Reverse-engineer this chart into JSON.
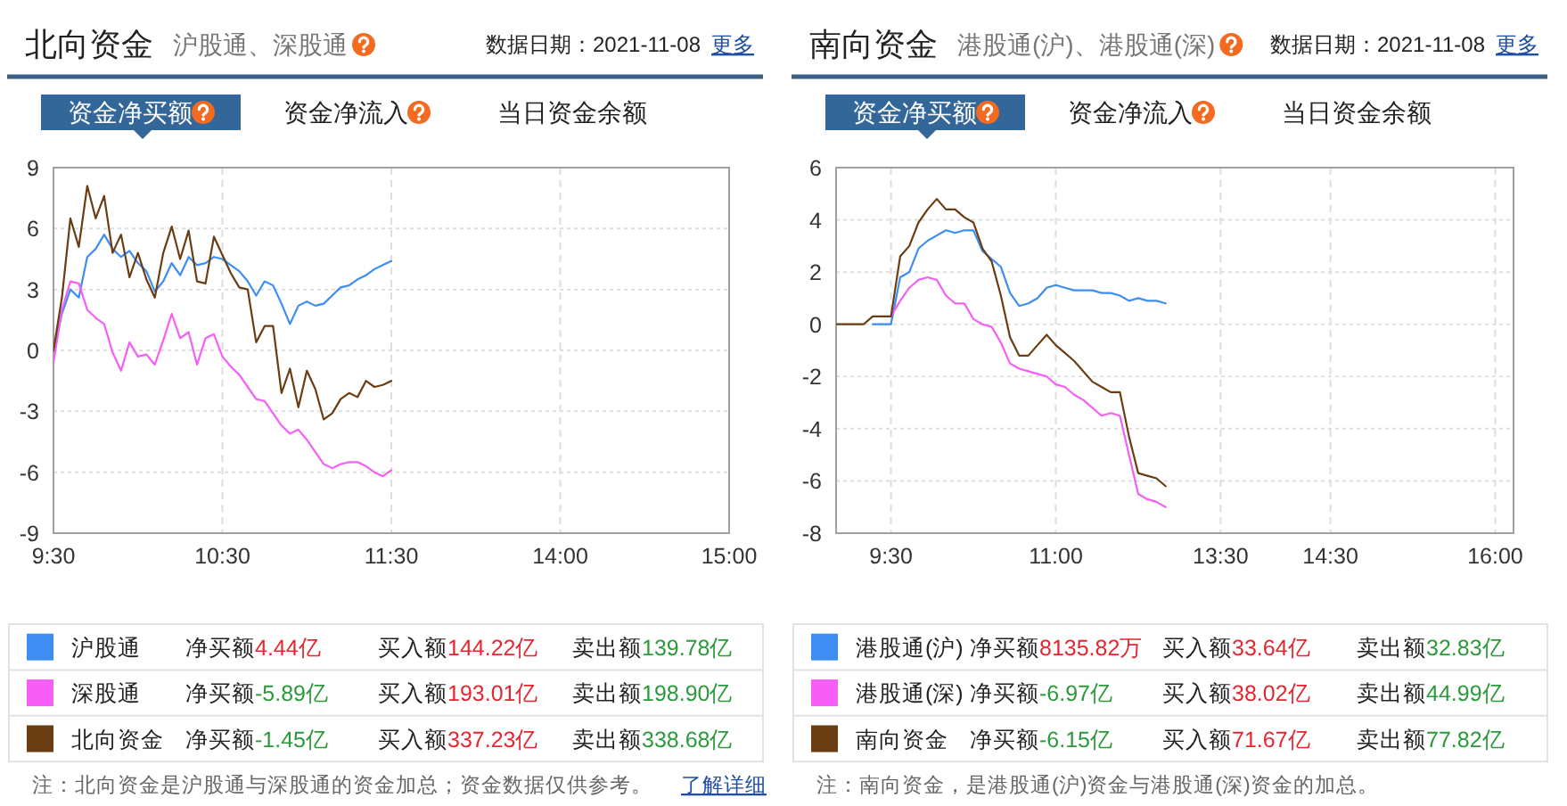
{
  "chart_data": [
    {
      "type": "line",
      "title": "北向资金",
      "subtitle": "沪股通、深股通",
      "annotations": [
        "数据日期：2021-11-08",
        "更多",
        "资金净买额",
        "资金净流入",
        "当日资金余额",
        "净买额",
        "4.44亿",
        "买入额",
        "144.22亿",
        "卖出额",
        "139.78亿",
        "净买额",
        "-5.89亿",
        "买入额",
        "193.01亿",
        "卖出额",
        "198.90亿",
        "净买额",
        "-1.45亿",
        "买入额",
        "337.23亿",
        "卖出额",
        "338.68亿",
        "注：北向资金是沪股通与深股通的资金加总；资金数据仅供参考。",
        "了解详细"
      ],
      "categories": [
        "9:30",
        null,
        null,
        null,
        null,
        null,
        null,
        null,
        null,
        null,
        null,
        null,
        null,
        null,
        null,
        null,
        null,
        null,
        null,
        null,
        "10:30",
        null,
        null,
        null,
        null,
        null,
        null,
        null,
        null,
        null,
        null,
        null,
        null,
        null,
        null,
        null,
        null,
        null,
        null,
        null,
        "11:30",
        null,
        null,
        null,
        null,
        null,
        null,
        null,
        null,
        null,
        null,
        null,
        null,
        null,
        null,
        null,
        null,
        null,
        null,
        null,
        "14:00",
        null,
        null,
        null,
        null,
        null,
        null,
        null,
        null,
        null,
        null,
        null,
        null,
        null,
        null,
        null,
        null,
        null,
        null,
        null,
        "15:00"
      ],
      "ylim": [
        -9,
        9
      ],
      "yticks": [
        -9,
        -6,
        -3,
        0,
        3,
        6,
        9
      ],
      "grid": true,
      "legend": "bottom",
      "series": [
        {
          "name": "沪股通",
          "color": "#3d8ef0",
          "values": [
            0.0,
            1.8,
            3.0,
            2.6,
            4.6,
            5.0,
            5.7,
            5.0,
            4.6,
            4.9,
            4.3,
            3.9,
            2.9,
            3.4,
            4.3,
            3.7,
            4.6,
            4.2,
            4.3,
            4.6,
            4.5,
            4.2,
            3.9,
            3.4,
            2.7,
            3.4,
            3.2,
            2.3,
            1.3,
            2.2,
            2.4,
            2.2,
            2.3,
            2.7,
            3.1,
            3.2,
            3.5,
            3.7,
            4.0,
            4.2,
            4.4,
            null,
            null,
            null,
            null,
            null,
            null,
            null,
            null,
            null,
            null,
            null,
            null,
            null,
            null,
            null,
            null,
            null,
            null,
            null,
            null,
            null,
            null,
            null,
            null,
            null,
            null,
            null,
            null,
            null,
            null,
            null,
            null,
            null,
            null,
            null,
            null,
            null,
            null,
            null,
            null
          ]
        },
        {
          "name": "深股通",
          "color": "#f55ff5",
          "values": [
            -0.6,
            2.0,
            3.4,
            3.3,
            2.0,
            1.6,
            1.3,
            -0.1,
            -1.0,
            0.4,
            -0.3,
            -0.2,
            -0.7,
            0.5,
            1.8,
            0.6,
            0.9,
            -0.7,
            0.6,
            0.8,
            -0.3,
            -0.8,
            -1.2,
            -1.8,
            -2.4,
            -2.5,
            -3.1,
            -3.7,
            -4.1,
            -3.9,
            -4.4,
            -5.0,
            -5.6,
            -5.8,
            -5.6,
            -5.5,
            -5.5,
            -5.7,
            -6.0,
            -6.2,
            -5.9,
            null,
            null,
            null,
            null,
            null,
            null,
            null,
            null,
            null,
            null,
            null,
            null,
            null,
            null,
            null,
            null,
            null,
            null,
            null,
            null,
            null,
            null,
            null,
            null,
            null,
            null,
            null,
            null,
            null,
            null,
            null,
            null,
            null,
            null,
            null,
            null,
            null,
            null,
            null,
            null
          ]
        },
        {
          "name": "北向资金",
          "color": "#6b3d12",
          "values": [
            0.0,
            2.6,
            6.5,
            5.1,
            8.1,
            6.5,
            7.6,
            4.8,
            5.7,
            3.6,
            4.8,
            3.5,
            2.6,
            4.8,
            6.1,
            4.5,
            5.9,
            3.4,
            3.3,
            5.6,
            4.7,
            3.8,
            3.1,
            3.0,
            0.4,
            1.2,
            1.2,
            -2.1,
            -0.9,
            -2.8,
            -1.0,
            -1.9,
            -3.4,
            -3.1,
            -2.4,
            -2.1,
            -2.3,
            -1.5,
            -1.8,
            -1.7,
            -1.5,
            null,
            null,
            null,
            null,
            null,
            null,
            null,
            null,
            null,
            null,
            null,
            null,
            null,
            null,
            null,
            null,
            null,
            null,
            null,
            null,
            null,
            null,
            null,
            null,
            null,
            null,
            null,
            null,
            null,
            null,
            null,
            null,
            null,
            null,
            null,
            null,
            null,
            null,
            null,
            null
          ]
        }
      ]
    },
    {
      "type": "line",
      "title": "南向资金",
      "subtitle": "港股通(沪)、港股通(深)",
      "annotations": [
        "数据日期：2021-11-08",
        "更多",
        "资金净买额",
        "资金净流入",
        "当日资金余额",
        "净买额",
        "8135.82万",
        "买入额",
        "33.64亿",
        "卖出额",
        "32.83亿",
        "净买额",
        "-6.97亿",
        "买入额",
        "38.02亿",
        "卖出额",
        "44.99亿",
        "净买额",
        "-6.15亿",
        "买入额",
        "71.67亿",
        "卖出额",
        "77.82亿",
        "注：南向资金，是港股通(沪)资金与港股通(深)资金的加总。"
      ],
      "categories": [
        null,
        null,
        null,
        null,
        null,
        null,
        "9:30",
        null,
        null,
        null,
        null,
        null,
        null,
        null,
        null,
        null,
        null,
        null,
        null,
        null,
        null,
        null,
        null,
        null,
        "11:00",
        null,
        null,
        null,
        null,
        null,
        null,
        null,
        null,
        null,
        null,
        null,
        null,
        null,
        null,
        null,
        null,
        null,
        "13:30",
        null,
        null,
        null,
        null,
        null,
        null,
        null,
        null,
        null,
        null,
        null,
        "14:30",
        null,
        null,
        null,
        null,
        null,
        null,
        null,
        null,
        null,
        null,
        null,
        null,
        null,
        null,
        null,
        null,
        null,
        "16:00",
        null,
        null
      ],
      "ylim": [
        -8,
        6
      ],
      "yticks": [
        -8,
        -6,
        -4,
        -2,
        0,
        2,
        4,
        6
      ],
      "grid": true,
      "legend": "bottom",
      "series": [
        {
          "name": "港股通(沪)",
          "color": "#3d8ef0",
          "values": [
            null,
            null,
            null,
            null,
            0,
            0,
            0,
            1.8,
            2.0,
            2.9,
            3.2,
            3.4,
            3.6,
            3.5,
            3.6,
            3.6,
            2.8,
            2.5,
            2.2,
            1.2,
            0.7,
            0.8,
            1.0,
            1.4,
            1.5,
            1.4,
            1.3,
            1.3,
            1.3,
            1.2,
            1.2,
            1.1,
            0.9,
            1.0,
            0.9,
            0.9,
            0.8,
            null,
            null,
            null,
            null,
            null,
            null,
            null,
            null,
            null,
            null,
            null,
            null,
            null,
            null,
            null,
            null,
            null,
            null,
            null,
            null,
            null,
            null,
            null,
            null,
            null,
            null,
            null,
            null,
            null,
            null,
            null,
            null,
            null,
            null,
            null,
            null,
            null,
            null
          ]
        },
        {
          "name": "港股通(深)",
          "color": "#f55ff5",
          "values": [
            null,
            null,
            null,
            null,
            null,
            null,
            0.3,
            0.9,
            1.4,
            1.7,
            1.8,
            1.7,
            1.1,
            0.8,
            0.8,
            0.2,
            0.0,
            -0.1,
            -0.7,
            -1.5,
            -1.7,
            -1.8,
            -1.9,
            -2.0,
            -2.3,
            -2.4,
            -2.7,
            -2.9,
            -3.2,
            -3.5,
            -3.4,
            -3.5,
            -5.0,
            -6.5,
            -6.7,
            -6.8,
            -7.0,
            null,
            null,
            null,
            null,
            null,
            null,
            null,
            null,
            null,
            null,
            null,
            null,
            null,
            null,
            null,
            null,
            null,
            null,
            null,
            null,
            null,
            null,
            null,
            null,
            null,
            null,
            null,
            null,
            null,
            null,
            null,
            null,
            null,
            null,
            null,
            null,
            null,
            null
          ]
        },
        {
          "name": "南向资金",
          "color": "#6b3d12",
          "values": [
            0,
            0,
            0,
            0,
            0.3,
            0.3,
            0.3,
            2.6,
            3.0,
            3.9,
            4.4,
            4.8,
            4.4,
            4.4,
            4.1,
            3.9,
            2.9,
            2.4,
            1.1,
            -0.5,
            -1.2,
            -1.2,
            -0.8,
            -0.4,
            -0.8,
            -1.1,
            -1.4,
            -1.8,
            -2.2,
            -2.4,
            -2.6,
            -2.6,
            -4.3,
            -5.7,
            -5.8,
            -5.9,
            -6.2,
            null,
            null,
            null,
            null,
            null,
            null,
            null,
            null,
            null,
            null,
            null,
            null,
            null,
            null,
            null,
            null,
            null,
            null,
            null,
            null,
            null,
            null,
            null,
            null,
            null,
            null,
            null,
            null,
            null,
            null,
            null,
            null,
            null,
            null,
            null,
            null,
            null,
            null
          ]
        }
      ]
    }
  ]
}
